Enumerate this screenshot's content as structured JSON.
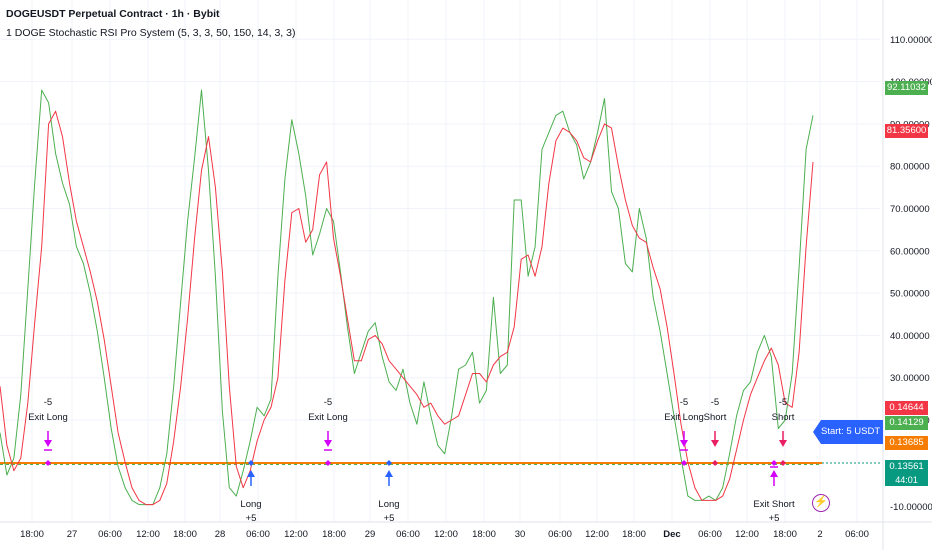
{
  "header": {
    "title": "DOGEUSDT Perpetual Contract · 1h · Bybit",
    "study": "1 DOGE Stochastic RSI Pro System (5, 3, 3, 50, 150, 14, 3, 3)"
  },
  "price_badges": {
    "k_value": "92.11032",
    "d_value": "81.35600",
    "p1": "0.14644",
    "p2": "0.14129",
    "p3": "0.13685",
    "p4": "0.13561",
    "countdown": "44:01"
  },
  "start_tag": "Start: 5 USDT | TP",
  "flash_icon": "lightning-icon",
  "colors": {
    "k_line": "#4caf50",
    "d_line": "#f23645",
    "marker_magenta": "#d500f9",
    "marker_blue": "#2962ff",
    "marker_red": "#e91e63",
    "badge_green": "#4caf50",
    "badge_red": "#f23645",
    "badge_orange": "#f57c00",
    "badge_teal": "#089981"
  },
  "chart_data": {
    "type": "line",
    "ylim": [
      -10,
      110
    ],
    "y_ticks": [
      "110.00000",
      "100.00000",
      "90.00000",
      "80.00000",
      "70.00000",
      "60.00000",
      "50.00000",
      "40.00000",
      "30.00000",
      "20.00000",
      "-10.00000"
    ],
    "x_ticks": [
      "18:00",
      "27",
      "06:00",
      "12:00",
      "18:00",
      "28",
      "06:00",
      "12:00",
      "18:00",
      "29",
      "06:00",
      "12:00",
      "18:00",
      "30",
      "06:00",
      "12:00",
      "18:00",
      "Dec",
      "06:00",
      "12:00",
      "18:00",
      "2",
      "06:00"
    ],
    "series": [
      {
        "name": "K",
        "values": [
          17,
          7,
          11,
          26,
          51,
          76,
          98,
          95,
          83,
          76,
          71,
          61,
          57,
          50,
          41,
          30,
          18,
          9,
          4,
          1,
          0,
          0,
          0,
          4,
          12,
          28,
          48,
          67,
          82,
          98,
          79,
          54,
          22,
          4,
          2,
          8,
          15,
          23,
          21,
          25,
          54,
          77,
          91,
          83,
          73,
          59,
          64,
          70,
          67,
          55,
          42,
          31,
          36,
          41,
          43,
          35,
          29,
          27,
          32,
          24,
          19,
          29,
          21,
          14,
          12,
          21,
          32,
          33,
          36,
          24,
          27,
          49,
          31,
          33,
          72,
          72,
          54,
          61,
          84,
          88,
          92,
          93,
          88,
          85,
          77,
          81,
          88,
          96,
          74,
          70,
          57,
          55,
          70,
          63,
          49,
          41,
          31,
          21,
          11,
          2,
          1,
          1,
          2,
          1,
          4,
          12,
          21,
          27,
          29,
          36,
          40,
          35,
          18,
          20,
          31,
          56,
          84,
          92
        ]
      },
      {
        "name": "D",
        "values": [
          28,
          14,
          8,
          11,
          24,
          43,
          61,
          90,
          93,
          87,
          76,
          67,
          61,
          55,
          48,
          39,
          28,
          17,
          10,
          4,
          1,
          0,
          0,
          1,
          5,
          15,
          28,
          44,
          63,
          79,
          87,
          75,
          55,
          28,
          9,
          4,
          8,
          15,
          20,
          23,
          30,
          53,
          69,
          70,
          62,
          65,
          78,
          81,
          63,
          54,
          44,
          34,
          34,
          39,
          40,
          38,
          34,
          32,
          30,
          28,
          26,
          23,
          24,
          21,
          19,
          20,
          21,
          26,
          31,
          31,
          29,
          33,
          35,
          36,
          42,
          58,
          59,
          54,
          61,
          76,
          86,
          89,
          88,
          86,
          82,
          81,
          86,
          90,
          89,
          80,
          72,
          66,
          63,
          62,
          56,
          51,
          42,
          31,
          19,
          10,
          4,
          1,
          1,
          1,
          2,
          6,
          13,
          20,
          26,
          30,
          34,
          37,
          33,
          24,
          23,
          36,
          61,
          81
        ]
      }
    ],
    "trade_markers": [
      {
        "label": "Exit Long",
        "qty": "-5"
      },
      {
        "label": "Long",
        "qty": "+5"
      },
      {
        "label": "Exit Long",
        "qty": "-5"
      },
      {
        "label": "Long",
        "qty": "+5"
      },
      {
        "label": "Exit Long",
        "qty": "-5"
      },
      {
        "label": "Short",
        "qty": "-5"
      },
      {
        "label": "Short",
        "qty": "-5"
      },
      {
        "label": "Exit Short",
        "qty": "+5"
      }
    ]
  }
}
